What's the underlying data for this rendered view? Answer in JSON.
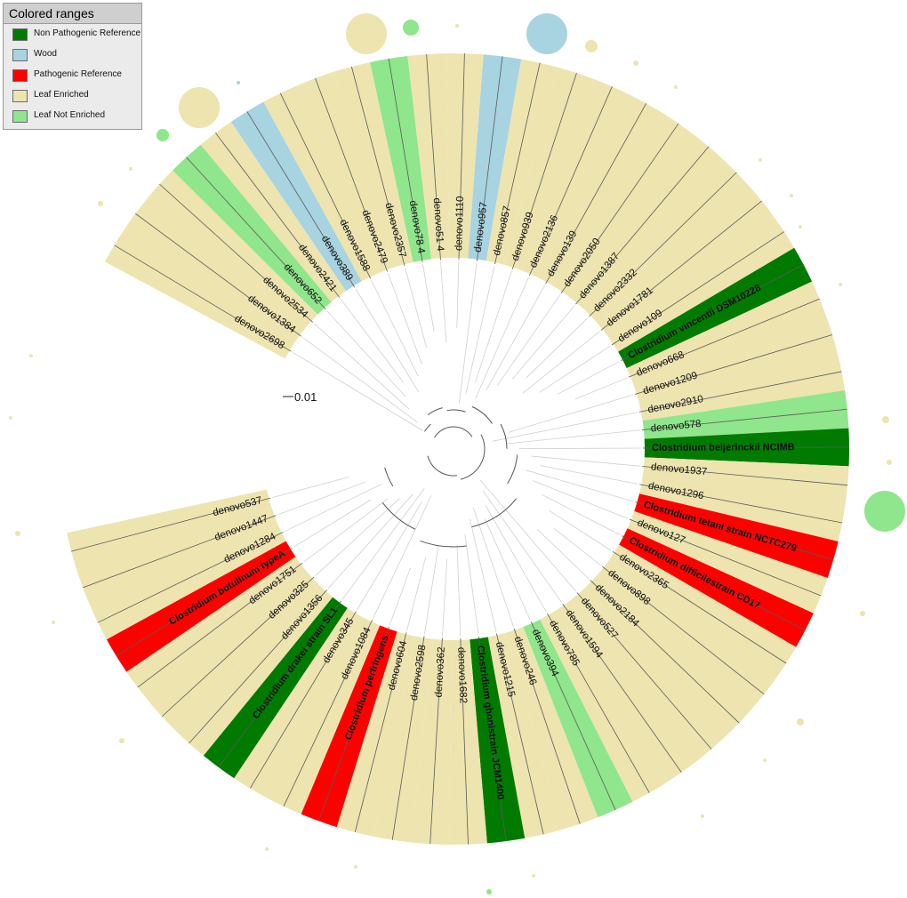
{
  "legend": {
    "title": "Colored ranges",
    "items": [
      {
        "label": "Non Pathogenic Reference",
        "color": "#007a00"
      },
      {
        "label": "Wood",
        "color": "#a8d3e1"
      },
      {
        "label": "Pathogenic Reference",
        "color": "#ff0000"
      },
      {
        "label": "Leaf Enriched",
        "color": "#ede4b0"
      },
      {
        "label": "Leaf Not Enriched",
        "color": "#8fe68c"
      }
    ]
  },
  "scale_bar": {
    "label": "0.01"
  },
  "leaves": [
    {
      "label": "denovo2698",
      "category": "Leaf Enriched"
    },
    {
      "label": "denovo1384",
      "category": "Leaf Enriched"
    },
    {
      "label": "denovo2534",
      "category": "Leaf Enriched"
    },
    {
      "label": "denovo652",
      "category": "Leaf Not Enriched"
    },
    {
      "label": "denovo2421",
      "category": "Leaf Enriched"
    },
    {
      "label": "denovo389",
      "category": "Wood"
    },
    {
      "label": "denovo1588",
      "category": "Leaf Enriched"
    },
    {
      "label": "denovo2479",
      "category": "Leaf Enriched"
    },
    {
      "label": "denovo2357",
      "category": "Leaf Enriched"
    },
    {
      "label": "denovo78 4",
      "category": "Leaf Not Enriched"
    },
    {
      "label": "denovo51 4",
      "category": "Leaf Enriched"
    },
    {
      "label": "denovo1110",
      "category": "Leaf Enriched"
    },
    {
      "label": "denovo957",
      "category": "Wood"
    },
    {
      "label": "denovo857",
      "category": "Leaf Enriched"
    },
    {
      "label": "denovo939",
      "category": "Leaf Enriched"
    },
    {
      "label": "denovo2136",
      "category": "Leaf Enriched"
    },
    {
      "label": "denovo139",
      "category": "Leaf Enriched"
    },
    {
      "label": "denovo2050",
      "category": "Leaf Enriched"
    },
    {
      "label": "denovo1387",
      "category": "Leaf Enriched"
    },
    {
      "label": "denovo2332",
      "category": "Leaf Enriched"
    },
    {
      "label": "denovo1781",
      "category": "Leaf Enriched"
    },
    {
      "label": "denovo109",
      "category": "Leaf Enriched"
    },
    {
      "label": "Clostridium vincentii DSM10228",
      "category": "Non Pathogenic Reference"
    },
    {
      "label": "denovo668",
      "category": "Leaf Enriched"
    },
    {
      "label": "denovo1209",
      "category": "Leaf Enriched"
    },
    {
      "label": "denovo2910",
      "category": "Leaf Enriched"
    },
    {
      "label": "denovo578",
      "category": "Leaf Not Enriched"
    },
    {
      "label": "Clostridium beijerinckii NCIMB",
      "category": "Non Pathogenic Reference"
    },
    {
      "label": "denovo1937",
      "category": "Leaf Enriched"
    },
    {
      "label": "denovo1296",
      "category": "Leaf Enriched"
    },
    {
      "label": "Clostridium tetani strain NCTC279",
      "category": "Pathogenic Reference"
    },
    {
      "label": "denovo127",
      "category": "Leaf Enriched"
    },
    {
      "label": "Clostridium difficilestrain CD17",
      "category": "Pathogenic Reference"
    },
    {
      "label": "denovo2365",
      "category": "Leaf Enriched"
    },
    {
      "label": "denovo898",
      "category": "Leaf Enriched"
    },
    {
      "label": "denovo2184",
      "category": "Leaf Enriched"
    },
    {
      "label": "denovo527",
      "category": "Leaf Enriched"
    },
    {
      "label": "denovo1594",
      "category": "Leaf Enriched"
    },
    {
      "label": "denovo785",
      "category": "Leaf Enriched"
    },
    {
      "label": "denovo394",
      "category": "Leaf Not Enriched"
    },
    {
      "label": "denovo246",
      "category": "Leaf Enriched"
    },
    {
      "label": "denovo1215",
      "category": "Leaf Enriched"
    },
    {
      "label": "Clostridium ghonistrain JCM1400",
      "category": "Non Pathogenic Reference"
    },
    {
      "label": "denovo1682",
      "category": "Leaf Enriched"
    },
    {
      "label": "denovo362",
      "category": "Leaf Enriched"
    },
    {
      "label": "denovo2598",
      "category": "Leaf Enriched"
    },
    {
      "label": "denovo604",
      "category": "Leaf Enriched"
    },
    {
      "label": "Clostridium perfringens",
      "category": "Pathogenic Reference"
    },
    {
      "label": "denovo1084",
      "category": "Leaf Enriched"
    },
    {
      "label": "denovo345",
      "category": "Leaf Enriched"
    },
    {
      "label": "Clostridium drakei strain SL1",
      "category": "Non Pathogenic Reference"
    },
    {
      "label": "denovo1356",
      "category": "Leaf Enriched"
    },
    {
      "label": "denovo325",
      "category": "Leaf Enriched"
    },
    {
      "label": "denovo1751",
      "category": "Leaf Enriched"
    },
    {
      "label": "Clostridium botulinum typeA",
      "category": "Pathogenic Reference"
    },
    {
      "label": "denovo1284",
      "category": "Leaf Enriched"
    },
    {
      "label": "denovo1447",
      "category": "Leaf Enriched"
    },
    {
      "label": "denovo537",
      "category": "Leaf Enriched"
    }
  ]
}
